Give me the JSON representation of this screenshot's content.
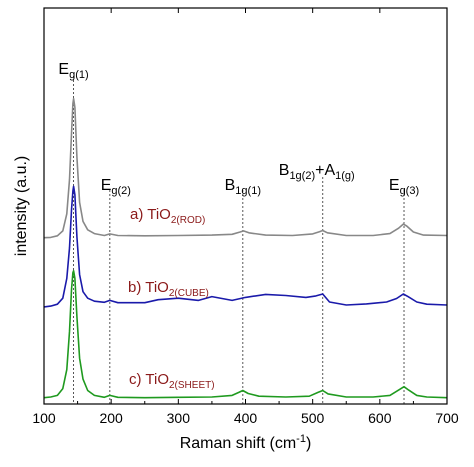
{
  "chart_data": {
    "type": "line",
    "xlabel": "Raman shift (cm",
    "xlabel_sup": "-1",
    "xlabel_tail": ")",
    "ylabel": "intensity (a.u.)",
    "xlim": [
      100,
      700
    ],
    "ylim": [
      0,
      1
    ],
    "xticks": [
      100,
      200,
      300,
      400,
      500,
      600,
      700
    ],
    "yticks_shown": false,
    "grid": false,
    "legend": "none",
    "colors": {
      "ROD": "#888888",
      "CUBE": "#1a1aaa",
      "SHEET": "#1f9a1f",
      "sample_label": "#8b1a1a",
      "guide": "#444444"
    },
    "peak_lines": [
      {
        "x": 144,
        "main": "E",
        "sub": "g(1)",
        "tail": ""
      },
      {
        "x": 198,
        "main": "E",
        "sub": "g(2)",
        "tail": ""
      },
      {
        "x": 396,
        "main": "B",
        "sub": "1g(1)",
        "tail": ""
      },
      {
        "x": 515,
        "main": "B",
        "sub": "1g(2)",
        "tail": "+A",
        "sub2": "1(g)"
      },
      {
        "x": 636,
        "main": "E",
        "sub": "g(3)",
        "tail": ""
      }
    ],
    "series": [
      {
        "label_main": "a) TiO",
        "label_sub": "2(ROD)",
        "color_key": "ROD",
        "points": [
          [
            100,
            0.427
          ],
          [
            110,
            0.428
          ],
          [
            120,
            0.432
          ],
          [
            128,
            0.445
          ],
          [
            134,
            0.49
          ],
          [
            138,
            0.58
          ],
          [
            141,
            0.7
          ],
          [
            143,
            0.78
          ],
          [
            144,
            0.793
          ],
          [
            146,
            0.77
          ],
          [
            149,
            0.64
          ],
          [
            153,
            0.52
          ],
          [
            158,
            0.47
          ],
          [
            165,
            0.448
          ],
          [
            175,
            0.438
          ],
          [
            190,
            0.433
          ],
          [
            198,
            0.437
          ],
          [
            210,
            0.433
          ],
          [
            250,
            0.432
          ],
          [
            300,
            0.433
          ],
          [
            350,
            0.434
          ],
          [
            380,
            0.436
          ],
          [
            392,
            0.442
          ],
          [
            397,
            0.445
          ],
          [
            405,
            0.44
          ],
          [
            430,
            0.434
          ],
          [
            470,
            0.433
          ],
          [
            500,
            0.437
          ],
          [
            510,
            0.443
          ],
          [
            515,
            0.446
          ],
          [
            522,
            0.44
          ],
          [
            550,
            0.433
          ],
          [
            590,
            0.433
          ],
          [
            615,
            0.438
          ],
          [
            628,
            0.452
          ],
          [
            635,
            0.463
          ],
          [
            640,
            0.458
          ],
          [
            650,
            0.442
          ],
          [
            665,
            0.434
          ],
          [
            700,
            0.433
          ]
        ]
      },
      {
        "label_main": "b) TiO",
        "label_sub": "2(CUBE)",
        "color_key": "CUBE",
        "points": [
          [
            100,
            0.245
          ],
          [
            110,
            0.247
          ],
          [
            120,
            0.252
          ],
          [
            128,
            0.268
          ],
          [
            134,
            0.32
          ],
          [
            138,
            0.4
          ],
          [
            141,
            0.5
          ],
          [
            143,
            0.55
          ],
          [
            144,
            0.562
          ],
          [
            146,
            0.54
          ],
          [
            149,
            0.43
          ],
          [
            153,
            0.33
          ],
          [
            158,
            0.285
          ],
          [
            165,
            0.268
          ],
          [
            175,
            0.26
          ],
          [
            190,
            0.257
          ],
          [
            198,
            0.262
          ],
          [
            210,
            0.256
          ],
          [
            250,
            0.256
          ],
          [
            270,
            0.264
          ],
          [
            300,
            0.268
          ],
          [
            330,
            0.262
          ],
          [
            350,
            0.272
          ],
          [
            380,
            0.262
          ],
          [
            400,
            0.27
          ],
          [
            430,
            0.278
          ],
          [
            460,
            0.275
          ],
          [
            490,
            0.27
          ],
          [
            505,
            0.274
          ],
          [
            515,
            0.279
          ],
          [
            525,
            0.258
          ],
          [
            550,
            0.25
          ],
          [
            580,
            0.253
          ],
          [
            610,
            0.258
          ],
          [
            625,
            0.267
          ],
          [
            635,
            0.279
          ],
          [
            642,
            0.272
          ],
          [
            655,
            0.258
          ],
          [
            670,
            0.252
          ],
          [
            700,
            0.25
          ]
        ]
      },
      {
        "label_main": "c) TiO",
        "label_sub": "2(SHEET)",
        "color_key": "SHEET",
        "points": [
          [
            100,
            0.006
          ],
          [
            110,
            0.008
          ],
          [
            120,
            0.012
          ],
          [
            128,
            0.03
          ],
          [
            134,
            0.08
          ],
          [
            138,
            0.18
          ],
          [
            141,
            0.29
          ],
          [
            143,
            0.335
          ],
          [
            144,
            0.34
          ],
          [
            146,
            0.32
          ],
          [
            149,
            0.22
          ],
          [
            153,
            0.11
          ],
          [
            158,
            0.055
          ],
          [
            165,
            0.025
          ],
          [
            175,
            0.012
          ],
          [
            190,
            0.007
          ],
          [
            198,
            0.012
          ],
          [
            210,
            0.007
          ],
          [
            250,
            0.006
          ],
          [
            300,
            0.007
          ],
          [
            350,
            0.008
          ],
          [
            380,
            0.012
          ],
          [
            390,
            0.02
          ],
          [
            396,
            0.025
          ],
          [
            404,
            0.017
          ],
          [
            420,
            0.01
          ],
          [
            460,
            0.008
          ],
          [
            495,
            0.01
          ],
          [
            508,
            0.02
          ],
          [
            515,
            0.025
          ],
          [
            523,
            0.016
          ],
          [
            550,
            0.008
          ],
          [
            590,
            0.008
          ],
          [
            615,
            0.012
          ],
          [
            628,
            0.026
          ],
          [
            636,
            0.035
          ],
          [
            643,
            0.026
          ],
          [
            655,
            0.012
          ],
          [
            670,
            0.008
          ],
          [
            700,
            0.006
          ]
        ]
      }
    ]
  }
}
